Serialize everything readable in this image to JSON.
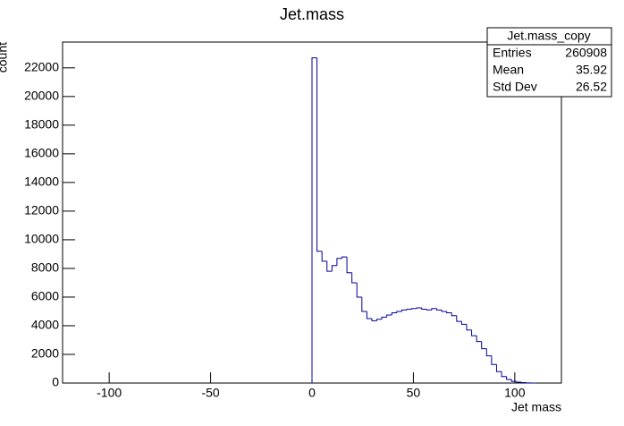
{
  "chart_data": {
    "type": "histogram",
    "title": "Jet.mass",
    "x_label": "Jet mass",
    "y_label": "count",
    "bins": [
      0,
      2.46,
      4.92,
      7.38,
      9.84,
      12.3,
      14.76,
      17.22,
      19.68,
      22.14,
      24.6,
      27.06,
      29.52,
      31.98,
      34.44,
      36.9,
      39.36,
      41.82,
      44.28,
      46.74,
      49.2,
      51.66,
      54.12,
      56.58,
      59.04,
      61.5,
      63.96,
      66.42,
      68.88,
      71.34,
      73.8,
      76.26,
      78.72,
      81.18,
      83.64,
      86.1,
      88.56,
      91.02,
      93.48,
      95.94,
      98.4,
      100.86,
      103.32,
      105.78,
      108.24,
      110.7
    ],
    "values": [
      22700,
      9200,
      8500,
      7800,
      8200,
      8700,
      8800,
      7700,
      7000,
      6000,
      5000,
      4500,
      4350,
      4450,
      4600,
      4750,
      4900,
      5000,
      5100,
      5150,
      5200,
      5250,
      5150,
      5100,
      5200,
      5100,
      5000,
      4900,
      4700,
      4300,
      4100,
      3700,
      3300,
      2900,
      2400,
      1900,
      1300,
      800,
      450,
      250,
      120,
      60,
      30,
      10,
      0
    ],
    "color": "#000099",
    "xlim": [
      -123,
      123
    ],
    "xticks": [
      -100,
      -50,
      0,
      50,
      100
    ],
    "ylim": [
      0,
      23800
    ],
    "yticks": [
      0,
      2000,
      4000,
      6000,
      8000,
      10000,
      12000,
      14000,
      16000,
      18000,
      20000,
      22000
    ],
    "stats": {
      "name": "Jet.mass_copy",
      "rows": [
        [
          "Entries",
          "260908"
        ],
        [
          "Mean",
          "35.92"
        ],
        [
          "Std Dev",
          "26.52"
        ]
      ]
    }
  }
}
